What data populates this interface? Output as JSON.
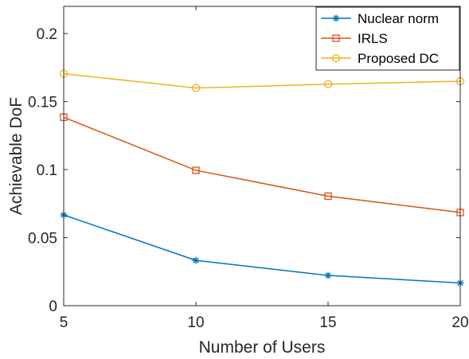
{
  "chart_data": {
    "type": "line",
    "title": "",
    "xlabel": "Number of Users",
    "ylabel": "Achievable DoF",
    "x": [
      5,
      10,
      15,
      20
    ],
    "xlim": [
      5,
      20
    ],
    "ylim": [
      0,
      0.22
    ],
    "xticks": [
      5,
      10,
      15,
      20
    ],
    "xtick_labels": [
      "5",
      "10",
      "15",
      "20"
    ],
    "yticks": [
      0,
      0.05,
      0.1,
      0.15,
      0.2
    ],
    "ytick_labels": [
      "0",
      "0.05",
      "0.1",
      "0.15",
      "0.2"
    ],
    "grid": false,
    "legend_position": "top-right",
    "series": [
      {
        "name": "Nuclear norm",
        "color": "#0072BD",
        "marker": "asterisk",
        "values": [
          0.0667,
          0.0333,
          0.0222,
          0.0167
        ]
      },
      {
        "name": "IRLS",
        "color": "#D95319",
        "marker": "square",
        "values": [
          0.1385,
          0.0995,
          0.0805,
          0.0685
        ]
      },
      {
        "name": "Proposed DC",
        "color": "#EDB120",
        "marker": "circle",
        "values": [
          0.1705,
          0.16,
          0.1628,
          0.165
        ]
      }
    ]
  }
}
